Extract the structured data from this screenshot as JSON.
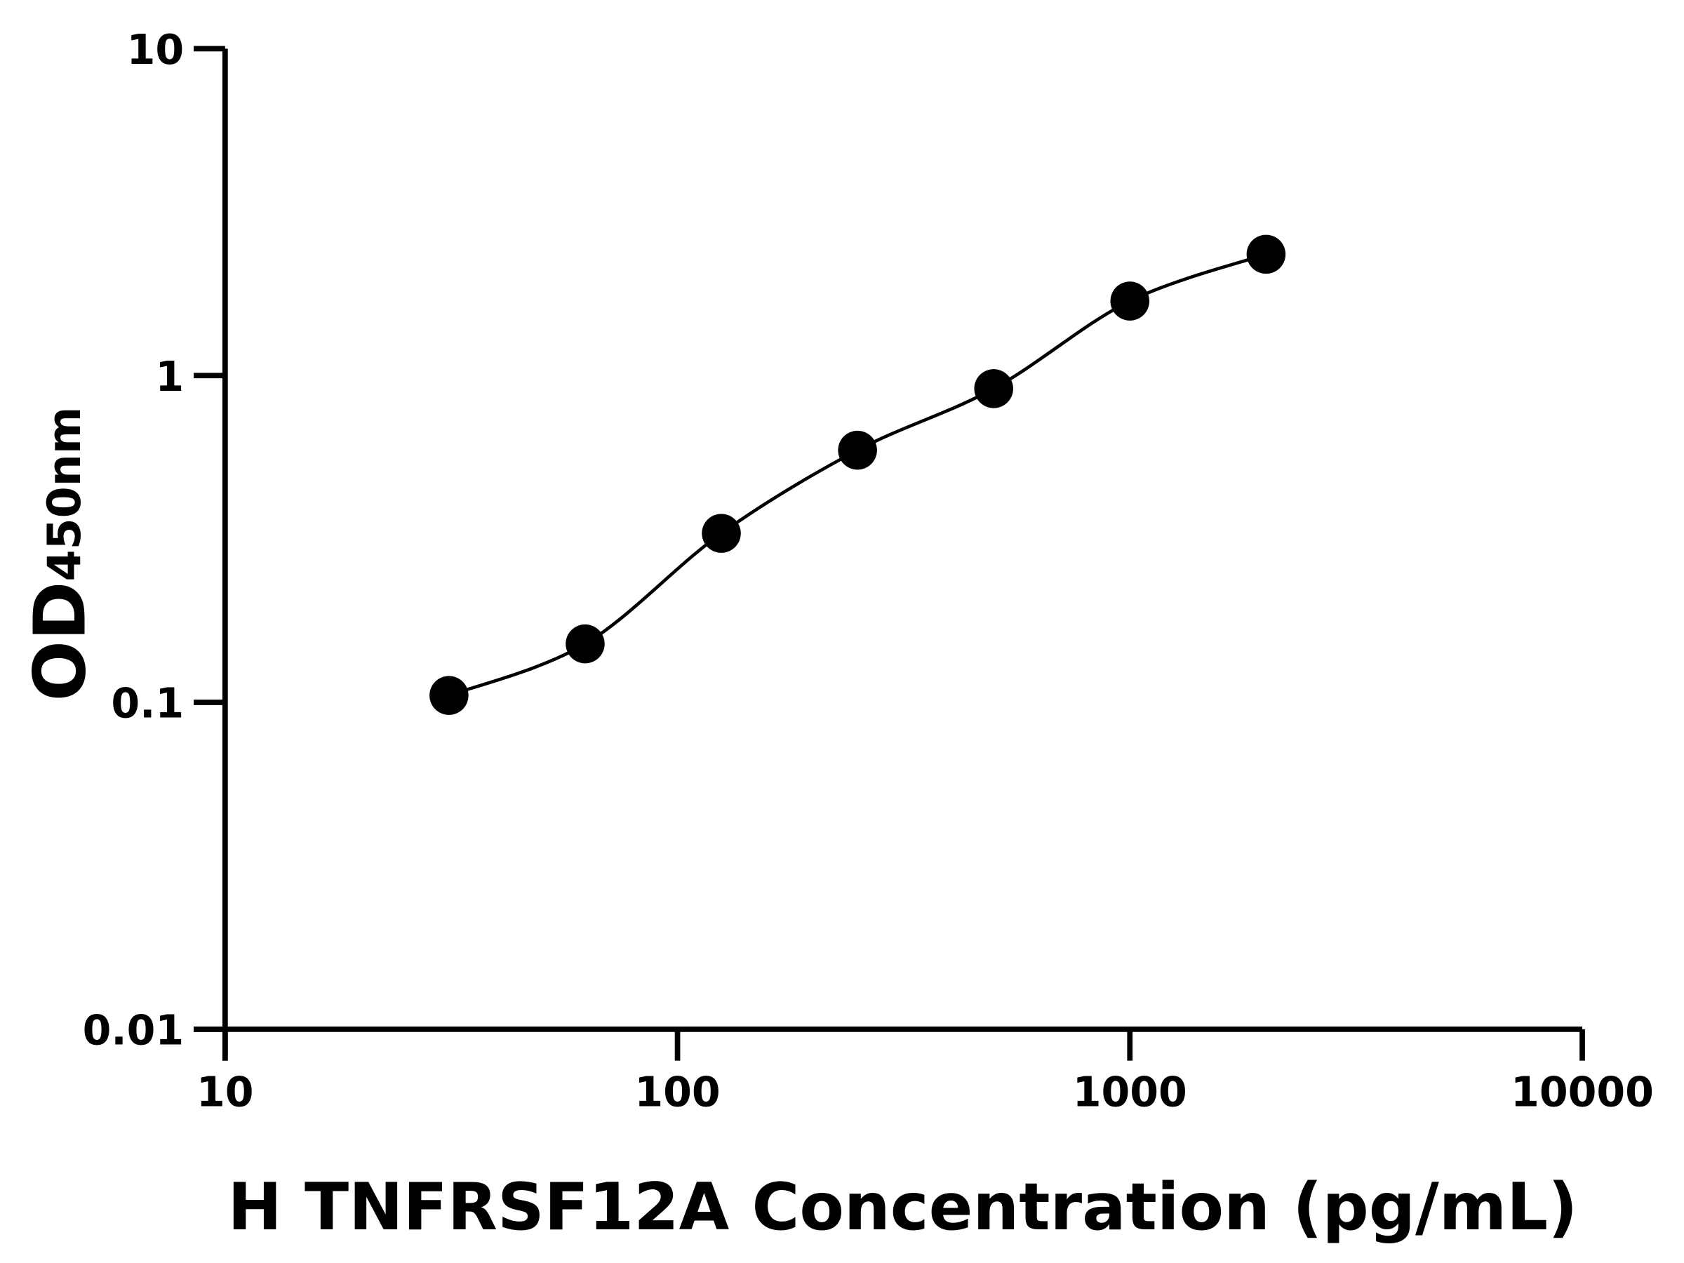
{
  "chart_data": {
    "type": "scatter",
    "title": "",
    "xlabel": "H TNFRSF12A Concentration (pg/mL)",
    "ylabel_main": "OD",
    "ylabel_sub": "450nm",
    "x_scale": "log",
    "y_scale": "log",
    "xlim": [
      10,
      10000
    ],
    "ylim": [
      0.01,
      10
    ],
    "x_ticks": [
      "10",
      "100",
      "1000",
      "10000"
    ],
    "y_ticks": [
      "0.01",
      "0.1",
      "1",
      "10"
    ],
    "grid": false,
    "series": [
      {
        "x": [
          31.25,
          62.5,
          125,
          250,
          500,
          1000,
          2000
        ],
        "y": [
          0.105,
          0.151,
          0.329,
          0.591,
          0.912,
          1.69,
          2.35
        ],
        "marker": "filled-circle",
        "fit_line": true
      }
    ],
    "colors": {
      "marks": "#000000"
    }
  }
}
